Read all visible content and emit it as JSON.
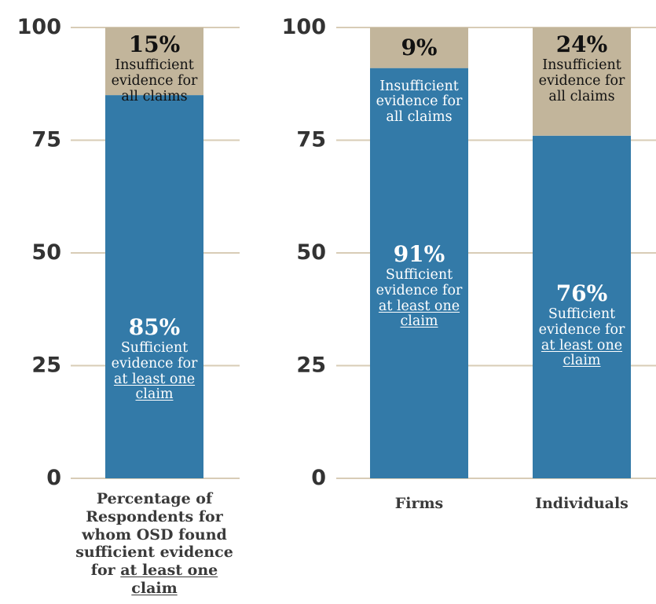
{
  "chart_data": [
    {
      "type": "bar",
      "stacked": true,
      "categories": [
        "Percentage of Respondents for whom OSD found sufficient evidence for at least one claim"
      ],
      "category_label": {
        "prefix": "Percentage of Respondents for whom OSD found sufficient evidence for ",
        "underlined": "at least one claim"
      },
      "series": [
        {
          "values": [
            85
          ],
          "label_pct": "85%",
          "label_text": "Sufficient evidence for ",
          "label_underlined": "at least one claim"
        },
        {
          "values": [
            15
          ],
          "label_pct": "15%",
          "label_text": "Insufficient evidence for all claims"
        }
      ],
      "yticks": [
        "0",
        "25",
        "50",
        "75",
        "100"
      ],
      "ylim": [
        0,
        100
      ],
      "grid": true
    },
    {
      "type": "bar",
      "stacked": true,
      "categories": [
        "Firms",
        "Individuals"
      ],
      "series": [
        {
          "values": [
            91,
            76
          ],
          "label_pct": [
            "91%",
            "76%"
          ],
          "label_text": "Sufficient evidence for ",
          "label_underlined": "at least one claim"
        },
        {
          "values": [
            9,
            24
          ],
          "label_pct": [
            "9%",
            "24%"
          ],
          "label_text": "Insufficient evidence for all claims"
        }
      ],
      "yticks": [
        "0",
        "25",
        "50",
        "75",
        "100"
      ],
      "ylim": [
        0,
        100
      ],
      "grid": true
    }
  ],
  "colors": {
    "sufficient": "#337aa8",
    "insufficient": "#c2b59b",
    "grid": "#d8ccb6",
    "tick": "#333333"
  }
}
